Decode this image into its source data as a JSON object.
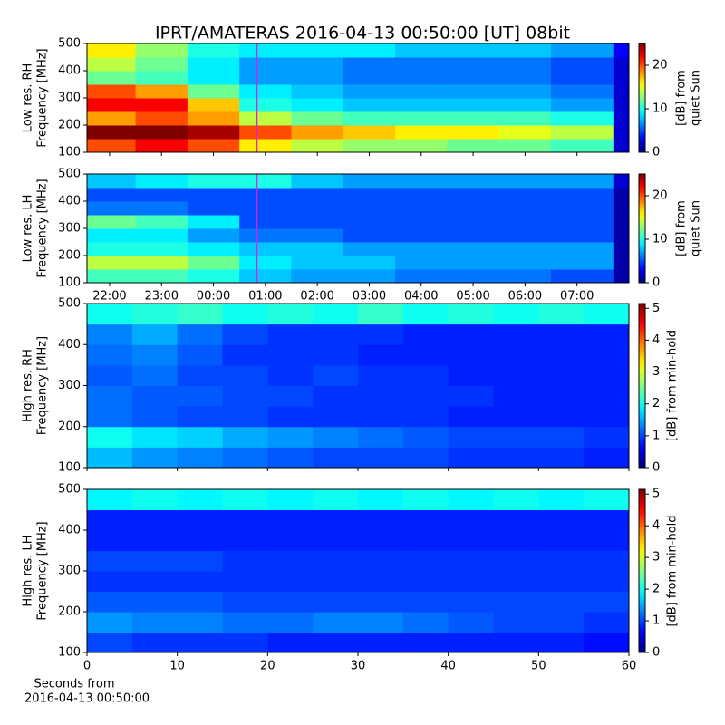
{
  "title": "IPRT/AMATERAS 2016-04-13 00:50:00 [UT]   08bit",
  "chart_data": [
    {
      "type": "heatmap",
      "ylabel": [
        "Low res. RH",
        "Frequency [MHz]"
      ],
      "x_bins": [
        21.565,
        22.5,
        23.5,
        24.5,
        25.5,
        26.5,
        27.5,
        28.5,
        29.5,
        30.5,
        31.7,
        32.0
      ],
      "y_bins": [
        100,
        150,
        200,
        250,
        300,
        350,
        400,
        450,
        500
      ],
      "values": [
        [
          20,
          22,
          20,
          16,
          14,
          13,
          13,
          12,
          12,
          11,
          2
        ],
        [
          25,
          25,
          24,
          20,
          18,
          17,
          16,
          16,
          15,
          14,
          2
        ],
        [
          18,
          20,
          18,
          14,
          12,
          11,
          11,
          11,
          11,
          10,
          2
        ],
        [
          22,
          22,
          17,
          10,
          9,
          8,
          8,
          8,
          8,
          7,
          2
        ],
        [
          20,
          18,
          12,
          9,
          8,
          7,
          7,
          7,
          7,
          6,
          2
        ],
        [
          12,
          11,
          9,
          7,
          7,
          6,
          6,
          6,
          6,
          5,
          2
        ],
        [
          14,
          12,
          9,
          7,
          7,
          6,
          6,
          6,
          6,
          5,
          2
        ],
        [
          16,
          13,
          10,
          9,
          9,
          9,
          8,
          8,
          8,
          7,
          3
        ]
      ],
      "xlim": [
        21.565,
        32.0
      ],
      "ylim": [
        100,
        500
      ],
      "xticks": [
        22,
        23,
        24,
        25,
        26,
        27,
        28,
        29,
        30,
        31
      ],
      "show_xtick_labels": false,
      "yticks": [
        100,
        200,
        300,
        400,
        500
      ],
      "colormap": "jet",
      "clim": [
        0,
        25
      ],
      "colorbar_ticks": [
        0,
        10,
        20
      ],
      "colorbar_label": [
        "[dB] from",
        "quiet Sun"
      ],
      "marker_x": 24.833,
      "marker_color": "#e020e0"
    },
    {
      "type": "heatmap",
      "ylabel": [
        "Low res. LH",
        "Frequency [MHz]"
      ],
      "x_bins": [
        21.565,
        22.5,
        23.5,
        24.5,
        25.5,
        26.5,
        27.5,
        28.5,
        29.5,
        30.5,
        31.7,
        32.0
      ],
      "y_bins": [
        100,
        150,
        200,
        250,
        300,
        350,
        400,
        450,
        500
      ],
      "values": [
        [
          11,
          11,
          10,
          8,
          7,
          7,
          6,
          6,
          6,
          5,
          1
        ],
        [
          14,
          14,
          12,
          9,
          8,
          8,
          7,
          7,
          7,
          7,
          1
        ],
        [
          10,
          10,
          9,
          8,
          8,
          7,
          7,
          7,
          7,
          7,
          1
        ],
        [
          9,
          9,
          7,
          6,
          6,
          5,
          5,
          5,
          5,
          5,
          1
        ],
        [
          12,
          11,
          9,
          5,
          5,
          5,
          5,
          5,
          5,
          5,
          1
        ],
        [
          6,
          6,
          5,
          5,
          5,
          5,
          5,
          5,
          5,
          5,
          1
        ],
        [
          5,
          5,
          5,
          5,
          5,
          5,
          5,
          5,
          5,
          5,
          1
        ],
        [
          8,
          9,
          10,
          10,
          8,
          7,
          7,
          7,
          7,
          7,
          2
        ]
      ],
      "xlim": [
        21.565,
        32.0
      ],
      "ylim": [
        100,
        500
      ],
      "xticks": [
        {
          "value": 22,
          "label": "22:00"
        },
        {
          "value": 23,
          "label": "23:00"
        },
        {
          "value": 24,
          "label": "00:00"
        },
        {
          "value": 25,
          "label": "01:00"
        },
        {
          "value": 26,
          "label": "02:00"
        },
        {
          "value": 27,
          "label": "03:00"
        },
        {
          "value": 28,
          "label": "04:00"
        },
        {
          "value": 29,
          "label": "05:00"
        },
        {
          "value": 30,
          "label": "06:00"
        },
        {
          "value": 31,
          "label": "07:00"
        }
      ],
      "show_xtick_labels": true,
      "yticks": [
        100,
        200,
        300,
        400,
        500
      ],
      "colormap": "jet",
      "clim": [
        0,
        25
      ],
      "colorbar_ticks": [
        0,
        10,
        20
      ],
      "colorbar_label": [
        "[dB] from",
        "quiet Sun"
      ],
      "marker_x": 24.833,
      "marker_color": "#e020e0"
    },
    {
      "type": "heatmap",
      "ylabel": [
        "High res. RH",
        "Frequency [MHz]"
      ],
      "x_bins": [
        0,
        5,
        10,
        15,
        20,
        25,
        30,
        35,
        40,
        45,
        50,
        55,
        60
      ],
      "y_bins": [
        100,
        150,
        200,
        250,
        300,
        350,
        400,
        450,
        500
      ],
      "values": [
        [
          1.6,
          1.4,
          1.3,
          1.2,
          1.1,
          1.0,
          1.0,
          1.0,
          0.9,
          0.9,
          0.9,
          0.8
        ],
        [
          2.0,
          1.8,
          1.7,
          1.5,
          1.4,
          1.3,
          1.2,
          1.1,
          1.0,
          1.0,
          1.0,
          0.9
        ],
        [
          1.2,
          1.1,
          1.0,
          1.0,
          0.9,
          0.9,
          0.9,
          0.9,
          0.8,
          0.8,
          0.8,
          0.8
        ],
        [
          1.2,
          1.1,
          1.1,
          1.0,
          1.0,
          0.9,
          0.9,
          0.9,
          0.9,
          0.8,
          0.8,
          0.8
        ],
        [
          1.1,
          1.2,
          1.0,
          1.0,
          0.9,
          1.0,
          0.9,
          0.9,
          0.8,
          0.8,
          0.8,
          0.8
        ],
        [
          1.2,
          1.3,
          1.1,
          0.9,
          0.9,
          0.9,
          0.8,
          0.8,
          0.8,
          0.8,
          0.8,
          0.8
        ],
        [
          1.3,
          1.5,
          1.2,
          1.0,
          0.9,
          0.9,
          0.9,
          0.8,
          0.8,
          0.8,
          0.8,
          0.8
        ],
        [
          2.0,
          2.1,
          2.2,
          2.0,
          2.1,
          2.0,
          2.2,
          2.0,
          2.1,
          2.0,
          2.1,
          2.0
        ]
      ],
      "xlim": [
        0,
        60
      ],
      "ylim": [
        100,
        500
      ],
      "xticks": [
        0,
        10,
        20,
        30,
        40,
        50,
        60
      ],
      "show_xtick_labels": false,
      "yticks": [
        100,
        200,
        300,
        400,
        500
      ],
      "colormap": "jet",
      "clim": [
        0,
        5.15
      ],
      "colorbar_ticks": [
        0,
        1,
        2,
        3,
        4,
        5
      ],
      "colorbar_label": [
        "[dB] from min-hold"
      ]
    },
    {
      "type": "heatmap",
      "ylabel": [
        "High res. LH",
        "Frequency [MHz]"
      ],
      "x_bins": [
        0,
        5,
        10,
        15,
        20,
        25,
        30,
        35,
        40,
        45,
        50,
        55,
        60
      ],
      "y_bins": [
        100,
        150,
        200,
        250,
        300,
        350,
        400,
        450,
        500
      ],
      "values": [
        [
          1.0,
          0.9,
          0.9,
          0.9,
          0.8,
          0.8,
          0.8,
          0.8,
          0.8,
          0.8,
          0.8,
          0.7
        ],
        [
          1.4,
          1.3,
          1.3,
          1.2,
          1.2,
          1.3,
          1.3,
          1.2,
          1.1,
          1.0,
          1.0,
          0.9
        ],
        [
          1.1,
          1.1,
          1.1,
          1.0,
          1.0,
          1.0,
          1.0,
          1.0,
          1.0,
          1.0,
          1.0,
          1.0
        ],
        [
          0.9,
          0.9,
          0.9,
          0.9,
          0.9,
          0.9,
          0.9,
          0.9,
          0.9,
          0.9,
          0.9,
          0.9
        ],
        [
          1.0,
          1.0,
          1.0,
          0.9,
          0.9,
          0.9,
          0.9,
          0.9,
          0.9,
          0.9,
          0.9,
          0.9
        ],
        [
          0.8,
          0.8,
          0.8,
          0.8,
          0.8,
          0.8,
          0.8,
          0.8,
          0.8,
          0.8,
          0.8,
          0.8
        ],
        [
          0.8,
          0.8,
          0.8,
          0.8,
          0.8,
          0.8,
          0.8,
          0.8,
          0.8,
          0.8,
          0.8,
          0.8
        ],
        [
          1.9,
          2.0,
          1.9,
          2.0,
          1.9,
          2.0,
          1.9,
          2.0,
          1.9,
          2.0,
          1.9,
          2.0
        ]
      ],
      "xlim": [
        0,
        60
      ],
      "ylim": [
        100,
        500
      ],
      "xticks": [
        0,
        10,
        20,
        30,
        40,
        50,
        60
      ],
      "show_xtick_labels": true,
      "xlabel": [
        "Seconds from",
        "2016-04-13 00:50:00"
      ],
      "yticks": [
        100,
        200,
        300,
        400,
        500
      ],
      "colormap": "jet",
      "clim": [
        0,
        5.15
      ],
      "colorbar_ticks": [
        0,
        1,
        2,
        3,
        4,
        5
      ],
      "colorbar_label": [
        "[dB] from min-hold"
      ]
    }
  ]
}
